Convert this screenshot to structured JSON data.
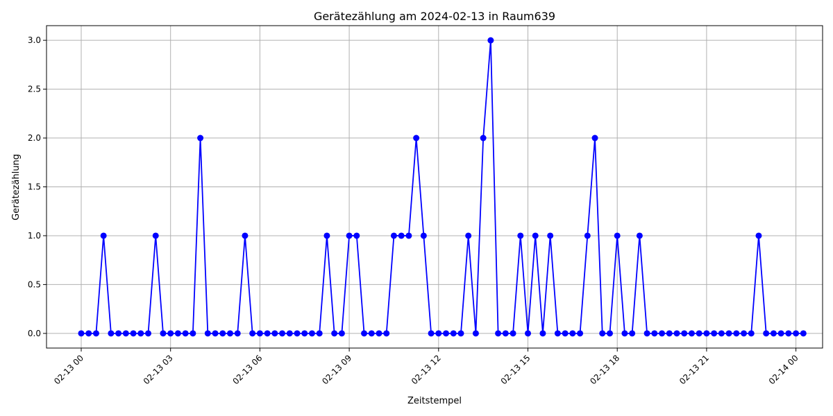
{
  "chart_data": {
    "type": "line",
    "title": "Gerätezählung am 2024-02-13 in Raum639",
    "xlabel": "Zeitstempel",
    "ylabel": "Gerätezählung",
    "x_start": "2024-02-13 00:00",
    "x_interval_minutes": 15,
    "x_tick_labels": [
      "02-13 00",
      "02-13 03",
      "02-13 06",
      "02-13 09",
      "02-13 12",
      "02-13 15",
      "02-13 18",
      "02-13 21",
      "02-14 00"
    ],
    "y_tick_labels": [
      "0.0",
      "0.5",
      "1.0",
      "1.5",
      "2.0",
      "2.5",
      "3.0"
    ],
    "ylim": [
      -0.15,
      3.15
    ],
    "grid": true,
    "colors": {
      "line": "#0000ff",
      "marker": "#0000ff",
      "grid": "#b0b0b0"
    },
    "series": [
      {
        "values": [
          0,
          0,
          0,
          1,
          0,
          0,
          0,
          0,
          0,
          0,
          1,
          0,
          0,
          0,
          0,
          0,
          2,
          0,
          0,
          0,
          0,
          0,
          1,
          0,
          0,
          0,
          0,
          0,
          0,
          0,
          0,
          0,
          0,
          1,
          0,
          0,
          1,
          1,
          0,
          0,
          0,
          0,
          1,
          1,
          1,
          2,
          1,
          0,
          0,
          0,
          0,
          0,
          1,
          0,
          2,
          3,
          0,
          0,
          0,
          1,
          0,
          1,
          0,
          1,
          0,
          0,
          0,
          0,
          1,
          2,
          0,
          0,
          1,
          0,
          0,
          1,
          0,
          0,
          0,
          0,
          0,
          0,
          0,
          0,
          0,
          0,
          0,
          0,
          0,
          0,
          0,
          1,
          0,
          0,
          0,
          0,
          0,
          0
        ]
      }
    ]
  }
}
